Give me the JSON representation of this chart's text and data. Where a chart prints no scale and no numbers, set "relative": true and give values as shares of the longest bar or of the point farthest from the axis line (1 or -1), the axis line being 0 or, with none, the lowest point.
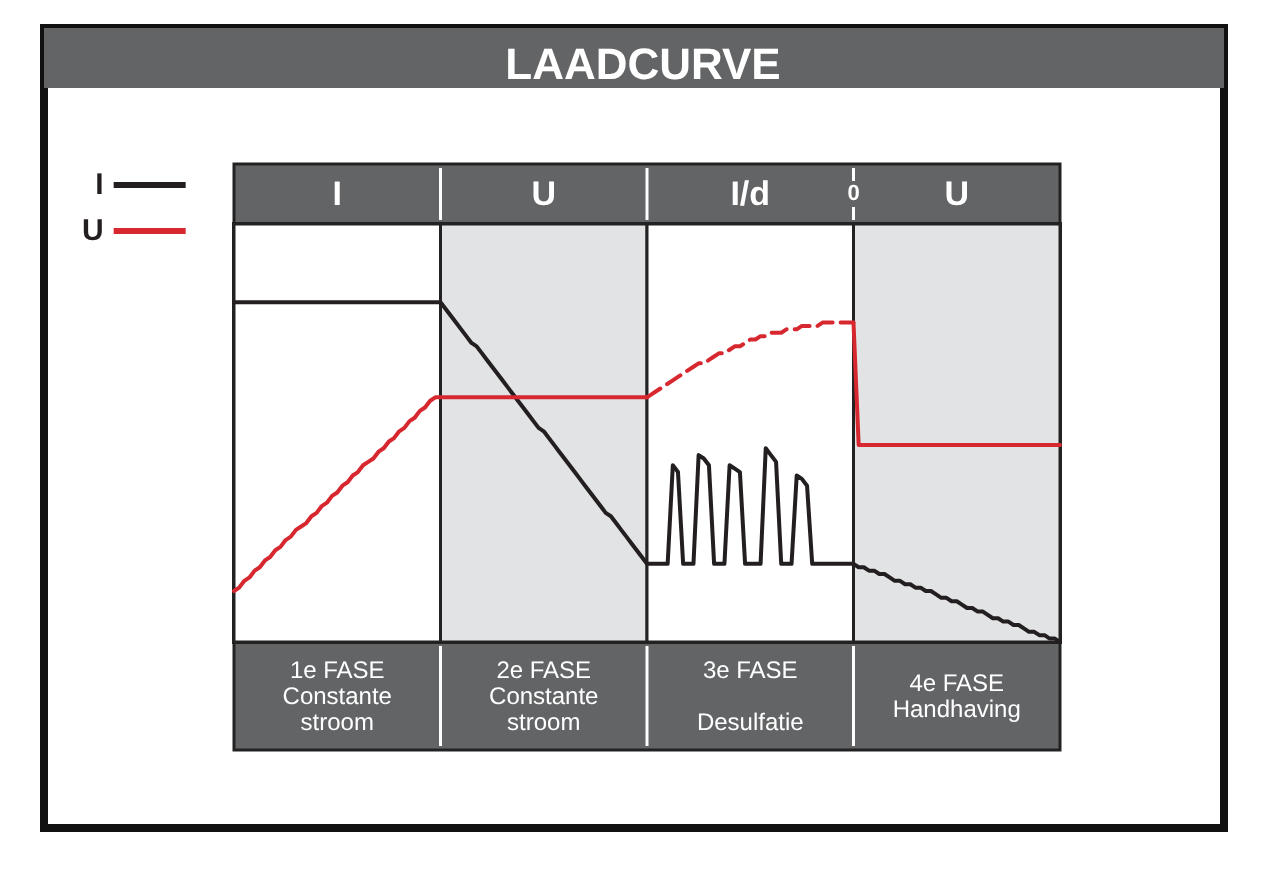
{
  "chart_data": {
    "type": "line",
    "title": "LAADCURVE",
    "relative": true,
    "marker": "none",
    "legend": "top left",
    "categories": [
      null,
      null,
      null,
      null,
      null,
      null,
      null,
      null,
      null,
      null,
      null,
      null,
      null,
      null,
      null,
      null,
      null,
      null,
      null,
      null,
      null,
      null,
      null,
      null,
      null,
      null,
      null,
      null,
      null,
      null,
      null,
      null,
      null,
      null,
      null,
      null,
      null,
      null,
      null,
      null,
      null,
      null,
      null,
      null,
      null,
      null,
      null,
      null,
      null,
      null,
      null,
      null,
      null,
      null,
      null,
      null,
      null,
      null,
      null,
      null,
      null,
      null,
      null,
      null,
      null,
      null,
      null,
      null,
      null,
      null,
      null,
      null,
      null,
      null,
      null,
      null,
      null,
      null,
      null,
      null,
      null,
      null,
      null,
      null,
      null,
      null,
      null,
      null,
      null,
      null,
      null,
      null,
      null,
      null,
      null,
      null,
      null,
      null,
      null,
      null,
      null,
      null,
      null,
      null,
      null,
      null,
      null,
      null,
      null,
      null,
      null,
      null,
      null,
      null,
      null,
      null,
      null,
      null,
      null,
      null,
      null,
      null,
      null,
      null,
      null,
      null,
      null,
      null,
      null,
      null,
      null,
      null,
      null,
      null,
      null,
      null,
      null,
      null,
      null,
      null,
      null,
      null,
      null,
      null,
      null,
      null,
      null,
      null,
      null,
      null,
      null,
      null,
      null,
      null,
      null,
      null,
      null,
      null,
      null,
      null,
      null
    ],
    "series": [
      {
        "name": "I",
        "color": "#231f20",
        "values": [
          1,
          1,
          1,
          1,
          1,
          1,
          1,
          1,
          1,
          1,
          1,
          1,
          1,
          1,
          1,
          1,
          1,
          1,
          1,
          1,
          1,
          1,
          1,
          1,
          1,
          1,
          1,
          1,
          1,
          1,
          1,
          1,
          1,
          1,
          1,
          1,
          1,
          1,
          1,
          1,
          1,
          0.98,
          0.96,
          0.94,
          0.92,
          0.9,
          0.88,
          0.87,
          0.85,
          0.83,
          0.81,
          0.79,
          0.77,
          0.75,
          0.73,
          0.71,
          0.69,
          0.67,
          0.65,
          0.63,
          0.62,
          0.6,
          0.58,
          0.56,
          0.54,
          0.52,
          0.5,
          0.48,
          0.46,
          0.44,
          0.42,
          0.4,
          0.38,
          0.37,
          0.35,
          0.33,
          0.31,
          0.29,
          0.27,
          0.25,
          0.23,
          0.23,
          0.23,
          0.23,
          0.23,
          0.52,
          0.5,
          0.23,
          0.23,
          0.23,
          0.55,
          0.54,
          0.52,
          0.23,
          0.23,
          0.23,
          0.52,
          0.51,
          0.5,
          0.23,
          0.23,
          0.23,
          0.23,
          0.57,
          0.55,
          0.53,
          0.23,
          0.23,
          0.23,
          0.49,
          0.48,
          0.46,
          0.23,
          0.23,
          0.23,
          0.23,
          0.23,
          0.23,
          0.23,
          0.23,
          0.23,
          0.22,
          0.22,
          0.21,
          0.21,
          0.2,
          0.2,
          0.19,
          0.18,
          0.18,
          0.17,
          0.17,
          0.16,
          0.16,
          0.15,
          0.15,
          0.14,
          0.13,
          0.13,
          0.12,
          0.12,
          0.11,
          0.1,
          0.1,
          0.09,
          0.09,
          0.08,
          0.07,
          0.07,
          0.06,
          0.06,
          0.05,
          0.05,
          0.04,
          0.03,
          0.03,
          0.02,
          0.02,
          0.01,
          0.01,
          0
        ]
      },
      {
        "name": "U",
        "color": "#d7282f",
        "values": [
          0.15,
          0.16,
          0.18,
          0.19,
          0.21,
          0.22,
          0.24,
          0.25,
          0.27,
          0.28,
          0.3,
          0.31,
          0.33,
          0.34,
          0.35,
          0.37,
          0.38,
          0.4,
          0.41,
          0.43,
          0.44,
          0.46,
          0.47,
          0.49,
          0.5,
          0.52,
          0.53,
          0.54,
          0.56,
          0.57,
          0.59,
          0.6,
          0.62,
          0.63,
          0.65,
          0.66,
          0.68,
          0.69,
          0.71,
          0.72,
          0.72,
          0.72,
          0.72,
          0.72,
          0.72,
          0.72,
          0.72,
          0.72,
          0.72,
          0.72,
          0.72,
          0.72,
          0.72,
          0.72,
          0.72,
          0.72,
          0.72,
          0.72,
          0.72,
          0.72,
          0.72,
          0.72,
          0.72,
          0.72,
          0.72,
          0.72,
          0.72,
          0.72,
          0.72,
          0.72,
          0.72,
          0.72,
          0.72,
          0.72,
          0.72,
          0.72,
          0.72,
          0.72,
          0.72,
          0.72,
          0.72,
          null,
          null,
          null,
          null,
          null,
          null,
          null,
          null,
          null,
          null,
          null,
          null,
          null,
          null,
          null,
          null,
          null,
          null,
          null,
          null,
          null,
          null,
          null,
          null,
          null,
          null,
          null,
          null,
          null,
          null,
          null,
          null,
          null,
          null,
          null,
          null,
          null,
          null,
          null,
          null,
          null,
          null,
          null,
          null,
          null,
          null,
          null,
          null,
          null,
          null,
          null,
          null,
          null,
          null,
          null,
          null,
          null,
          null,
          null,
          null,
          null,
          null,
          null,
          null,
          null,
          null,
          null,
          null,
          null,
          null,
          null,
          null,
          null,
          null,
          null,
          null,
          null,
          null,
          null,
          null
        ]
      },
      {
        "color": "#d7282f",
        "line_style": "dashed",
        "values": [
          null,
          null,
          null,
          null,
          null,
          null,
          null,
          null,
          null,
          null,
          null,
          null,
          null,
          null,
          null,
          null,
          null,
          null,
          null,
          null,
          null,
          null,
          null,
          null,
          null,
          null,
          null,
          null,
          null,
          null,
          null,
          null,
          null,
          null,
          null,
          null,
          null,
          null,
          null,
          null,
          null,
          null,
          null,
          null,
          null,
          null,
          null,
          null,
          null,
          null,
          null,
          null,
          null,
          null,
          null,
          null,
          null,
          null,
          null,
          null,
          null,
          null,
          null,
          null,
          null,
          null,
          null,
          null,
          null,
          null,
          null,
          null,
          null,
          null,
          null,
          null,
          null,
          null,
          null,
          null,
          0.72,
          0.73,
          0.74,
          0.75,
          0.76,
          0.77,
          0.78,
          0.79,
          0.8,
          0.81,
          0.82,
          0.82,
          0.83,
          0.84,
          0.85,
          0.85,
          0.86,
          0.87,
          0.87,
          0.88,
          0.89,
          0.89,
          0.9,
          0.9,
          0.91,
          0.91,
          0.91,
          0.92,
          0.92,
          0.92,
          0.93,
          0.93,
          0.93,
          0.93,
          0.94,
          0.94,
          0.94,
          0.94,
          0.94,
          0.94,
          0.94,
          null,
          null,
          null,
          null,
          null,
          null,
          null,
          null,
          null,
          null,
          null,
          null,
          null,
          null,
          null,
          null,
          null,
          null,
          null,
          null,
          null,
          null,
          null,
          null,
          null,
          null,
          null,
          null,
          null,
          null,
          null,
          null,
          null,
          null,
          null,
          null,
          null,
          null,
          null,
          null
        ]
      },
      {
        "color": "#d7282f",
        "values": [
          null,
          null,
          null,
          null,
          null,
          null,
          null,
          null,
          null,
          null,
          null,
          null,
          null,
          null,
          null,
          null,
          null,
          null,
          null,
          null,
          null,
          null,
          null,
          null,
          null,
          null,
          null,
          null,
          null,
          null,
          null,
          null,
          null,
          null,
          null,
          null,
          null,
          null,
          null,
          null,
          null,
          null,
          null,
          null,
          null,
          null,
          null,
          null,
          null,
          null,
          null,
          null,
          null,
          null,
          null,
          null,
          null,
          null,
          null,
          null,
          null,
          null,
          null,
          null,
          null,
          null,
          null,
          null,
          null,
          null,
          null,
          null,
          null,
          null,
          null,
          null,
          null,
          null,
          null,
          null,
          null,
          null,
          null,
          null,
          null,
          null,
          null,
          null,
          null,
          null,
          null,
          null,
          null,
          null,
          null,
          null,
          null,
          null,
          null,
          null,
          null,
          null,
          null,
          null,
          null,
          null,
          null,
          null,
          null,
          null,
          null,
          null,
          null,
          null,
          null,
          null,
          null,
          null,
          null,
          null,
          0.94,
          0.58,
          0.58,
          0.58,
          0.58,
          0.58,
          0.58,
          0.58,
          0.58,
          0.58,
          0.58,
          0.58,
          0.58,
          0.58,
          0.58,
          0.58,
          0.58,
          0.58,
          0.58,
          0.58,
          0.58,
          0.58,
          0.58,
          0.58,
          0.58,
          0.58,
          0.58,
          0.58,
          0.58,
          0.58,
          0.58,
          0.58,
          0.58,
          0.58,
          0.58,
          0.58,
          0.58,
          0.58,
          0.58,
          0.58,
          0.58
        ]
      }
    ],
    "annotations": [
      "I",
      "U",
      "I/d",
      "U",
      "1e FASE\nConstante\nstroom",
      "2e FASE\nConstante\nstroom",
      "3e FASE\n\nDesulfatie",
      "4e FASE\nHandhaving",
      "0"
    ]
  }
}
